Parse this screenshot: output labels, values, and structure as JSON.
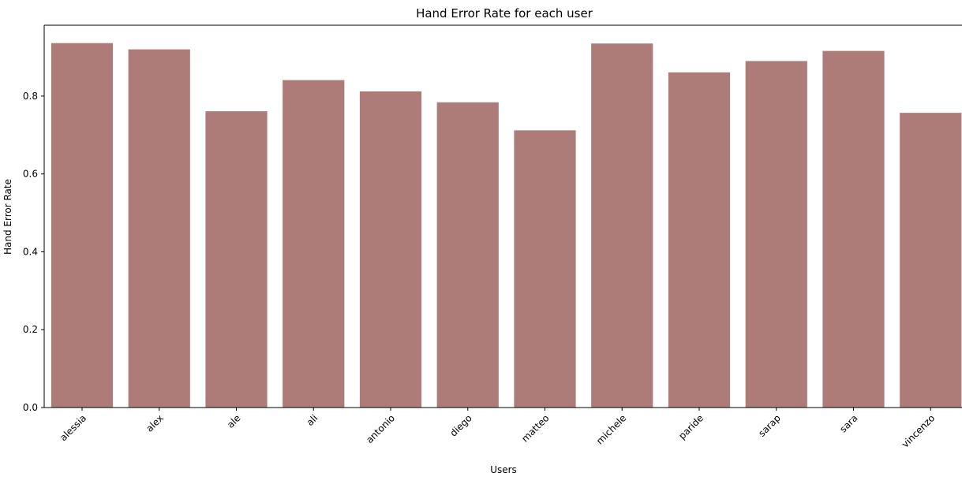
{
  "chart_data": {
    "type": "bar",
    "title": "Hand Error Rate for each user",
    "xlabel": "Users",
    "ylabel": "Hand Error Rate",
    "categories": [
      "alessia",
      "alex",
      "ale",
      "ali",
      "antonio",
      "diego",
      "matteo",
      "michele",
      "paride",
      "sarap",
      "sara",
      "vincenzo"
    ],
    "values": [
      0.936,
      0.92,
      0.761,
      0.841,
      0.812,
      0.784,
      0.712,
      0.935,
      0.861,
      0.89,
      0.916,
      0.757
    ],
    "yticks": [
      "0.0",
      "0.2",
      "0.4",
      "0.6",
      "0.8"
    ],
    "ylim": [
      0,
      0.982
    ],
    "bar_color": "#ad7b78",
    "grid": false,
    "legend": "none"
  }
}
